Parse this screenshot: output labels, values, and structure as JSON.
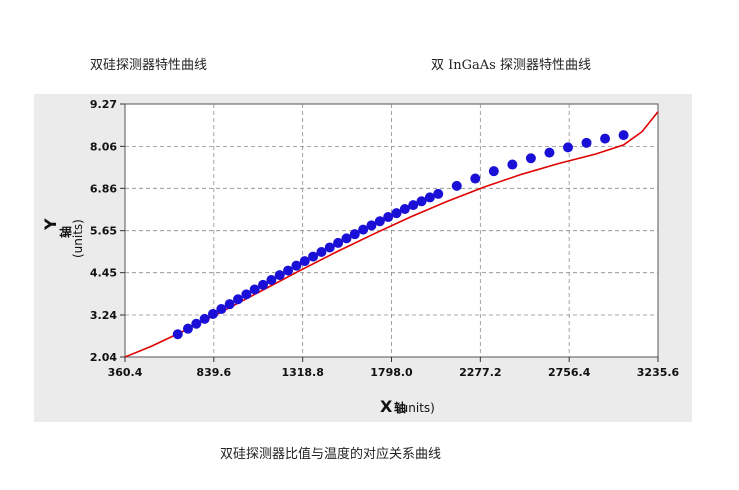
{
  "captions": {
    "left": "双硅探测器特性曲线",
    "right": "双 InGaAs 探测器特性曲线",
    "bottom": "双硅探测器比值与温度的对应关系曲线"
  },
  "colors": {
    "panel_background": "#ebebeb",
    "plot_background": "#ffffff",
    "grid": "#8c8c8c",
    "fit_line": "#e00000",
    "points": "#1a0fd6"
  },
  "chart_data": {
    "type": "scatter",
    "xlim": [
      360.4,
      3235.6
    ],
    "ylim": [
      2.04,
      9.27
    ],
    "x_ticks": [
      "360.4",
      "839.6",
      "1318.8",
      "1798.0",
      "2277.2",
      "2756.4",
      "3235.6"
    ],
    "y_ticks": [
      "2.04",
      "3.24",
      "4.45",
      "5.65",
      "6.86",
      "8.06",
      "9.27"
    ],
    "xlabel": {
      "main": "X",
      "suffix": "轴",
      "units": "(units)"
    },
    "ylabel": {
      "main": "Y",
      "suffix": "轴",
      "units": "(units)"
    },
    "grid": true,
    "series": [
      {
        "kind": "points",
        "x": [
          645,
          700,
          745,
          790,
          835,
          880,
          925,
          970,
          1015,
          1060,
          1105,
          1150,
          1195,
          1240,
          1285,
          1330,
          1375,
          1420,
          1465,
          1510,
          1555,
          1600,
          1645,
          1690,
          1735,
          1780,
          1825,
          1870,
          1915,
          1960,
          2005,
          2050,
          2150,
          2250,
          2350,
          2450,
          2550,
          2650,
          2750,
          2850,
          2950,
          3050
        ],
        "y": [
          2.69,
          2.85,
          2.99,
          3.13,
          3.27,
          3.41,
          3.55,
          3.69,
          3.83,
          3.97,
          4.1,
          4.24,
          4.38,
          4.51,
          4.65,
          4.78,
          4.91,
          5.04,
          5.17,
          5.3,
          5.43,
          5.55,
          5.68,
          5.8,
          5.92,
          6.04,
          6.15,
          6.27,
          6.38,
          6.49,
          6.6,
          6.7,
          6.93,
          7.14,
          7.35,
          7.54,
          7.72,
          7.88,
          8.03,
          8.16,
          8.28,
          8.38
        ]
      },
      {
        "kind": "fit_curve",
        "x": [
          360.4,
          500,
          700,
          900,
          1100,
          1300,
          1500,
          1700,
          1900,
          2100,
          2300,
          2500,
          2700,
          2900,
          3050,
          3150,
          3235.6
        ],
        "y": [
          2.04,
          2.34,
          2.84,
          3.38,
          3.94,
          4.5,
          5.04,
          5.55,
          6.04,
          6.49,
          6.9,
          7.26,
          7.57,
          7.84,
          8.1,
          8.48,
          9.05
        ]
      }
    ]
  }
}
